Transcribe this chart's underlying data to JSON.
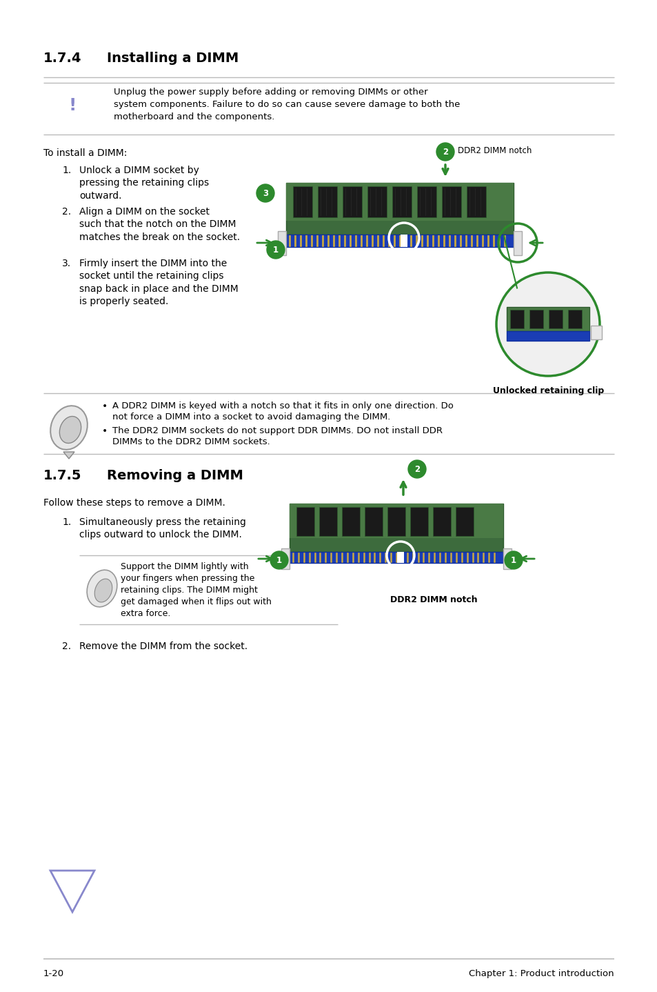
{
  "title_174": "1.7.4",
  "title_174_text": "Installing a DIMM",
  "title_175": "1.7.5",
  "title_175_text": "Removing a DIMM",
  "warning_text_line1": "Unplug the power supply before adding or removing DIMMs or other",
  "warning_text_line2": "system components. Failure to do so can cause severe damage to both the",
  "warning_text_line3": "motherboard and the components.",
  "install_intro": "To install a DIMM:",
  "install_step1": "Unlock a DIMM socket by\npressing the retaining clips\noutward.",
  "install_step2": "Align a DIMM on the socket\nsuch that the notch on the DIMM\nmatches the break on the socket.",
  "install_step3": "Firmly insert the DIMM into the\nsocket until the retaining clips\nsnap back in place and the DIMM\nis properly seated.",
  "ddr2_notch_label": "DDR2 DIMM notch",
  "unlocked_clip_label": "Unlocked retaining clip",
  "note1_text_line1": "A DDR2 DIMM is keyed with a notch so that it fits in only one direction. Do",
  "note1_text_line2": "not force a DIMM into a socket to avoid damaging the DIMM.",
  "note2_text_line1": "The DDR2 DIMM sockets do not support DDR DIMMs. DO not install DDR",
  "note2_text_line2": "DIMMsto the DDR2 DIMM sockets.",
  "remove_intro": "Follow these steps to remove a DIMM.",
  "remove_step1": "Simultaneously press the retaining\nclips outward to unlock the DIMM.",
  "remove_note_line1": "Support the DIMM lightly with",
  "remove_note_line2": "your fingers when pressing the",
  "remove_note_line3": "retaining clips. The DIMM might",
  "remove_note_line4": "get damaged when it flips out with",
  "remove_note_line5": "extra force.",
  "remove_step2": "Remove the DIMM from the socket.",
  "ddr2_notch_label2": "DDR2 DIMM notch",
  "footer_left": "1-20",
  "footer_right": "Chapter 1: Product introduction",
  "bg_color": "#ffffff",
  "text_color": "#000000",
  "green_color": "#2d8a2d",
  "line_color": "#bbbbbb",
  "warn_tri_color": "#8888cc",
  "board_green": "#3d6b3d",
  "board_green2": "#4a7a45",
  "connector_blue": "#1a3db5",
  "chip_dark": "#1a1a1a",
  "chip_mid": "#2a2a2a",
  "white_color": "#ffffff",
  "clip_white": "#e8e8e8",
  "note2_text_line2_correct": "DIMMs to the DDR2 DIMM sockets."
}
